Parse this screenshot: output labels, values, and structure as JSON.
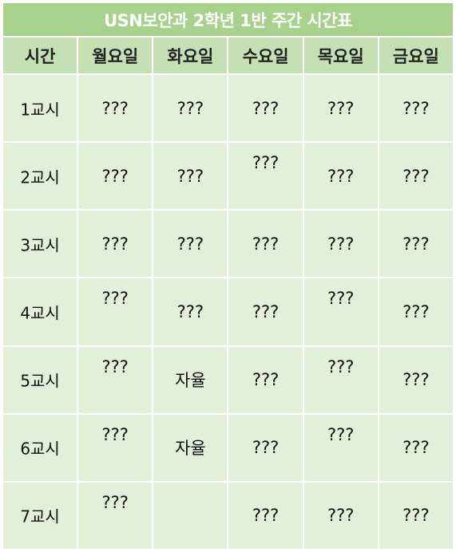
{
  "title": "USN보안과 2학년 1반 주간 시간표",
  "headers": [
    "시간",
    "월요일",
    "화요일",
    "수요일",
    "목요일",
    "금요일"
  ],
  "rows": [
    {
      "period": "1교시",
      "cells": [
        {
          "text": "???",
          "raised": false
        },
        {
          "text": "???",
          "raised": false
        },
        {
          "text": "???",
          "raised": false
        },
        {
          "text": "???",
          "raised": false
        },
        {
          "text": "???",
          "raised": false
        }
      ]
    },
    {
      "period": "2교시",
      "cells": [
        {
          "text": "???",
          "raised": false
        },
        {
          "text": "???",
          "raised": false
        },
        {
          "text": "???",
          "raised": true
        },
        {
          "text": "???",
          "raised": false
        },
        {
          "text": "???",
          "raised": false
        }
      ]
    },
    {
      "period": "3교시",
      "cells": [
        {
          "text": "???",
          "raised": false
        },
        {
          "text": "???",
          "raised": false
        },
        {
          "text": "???",
          "raised": false
        },
        {
          "text": "???",
          "raised": false
        },
        {
          "text": "???",
          "raised": false
        }
      ]
    },
    {
      "period": "4교시",
      "cells": [
        {
          "text": "???",
          "raised": true
        },
        {
          "text": "???",
          "raised": false
        },
        {
          "text": "???",
          "raised": false
        },
        {
          "text": "???",
          "raised": true
        },
        {
          "text": "???",
          "raised": false
        }
      ]
    },
    {
      "period": "5교시",
      "cells": [
        {
          "text": "???",
          "raised": true
        },
        {
          "text": "자율",
          "raised": false
        },
        {
          "text": "???",
          "raised": false
        },
        {
          "text": "???",
          "raised": true
        },
        {
          "text": "???",
          "raised": false
        }
      ]
    },
    {
      "period": "6교시",
      "cells": [
        {
          "text": "???",
          "raised": true
        },
        {
          "text": "자율",
          "raised": false
        },
        {
          "text": "???",
          "raised": false
        },
        {
          "text": "???",
          "raised": true
        },
        {
          "text": "???",
          "raised": false
        }
      ]
    },
    {
      "period": "7교시",
      "cells": [
        {
          "text": "???",
          "raised": true
        },
        {
          "text": "",
          "raised": false
        },
        {
          "text": "???",
          "raised": false
        },
        {
          "text": "???",
          "raised": false
        },
        {
          "text": "???",
          "raised": false
        }
      ]
    }
  ],
  "colors": {
    "title_bg": "#a9d18e",
    "header_bg": "#c5e0b4",
    "body_bg": "#e2f0d9"
  }
}
